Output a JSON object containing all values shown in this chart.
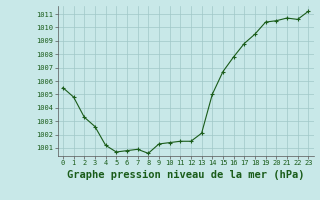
{
  "x": [
    0,
    1,
    2,
    3,
    4,
    5,
    6,
    7,
    8,
    9,
    10,
    11,
    12,
    13,
    14,
    15,
    16,
    17,
    18,
    19,
    20,
    21,
    22,
    23
  ],
  "y": [
    1005.5,
    1004.8,
    1003.3,
    1002.6,
    1001.2,
    1000.7,
    1000.8,
    1000.9,
    1000.6,
    1001.3,
    1001.4,
    1001.5,
    1001.5,
    1002.1,
    1005.0,
    1006.7,
    1007.8,
    1008.8,
    1009.5,
    1010.4,
    1010.5,
    1010.7,
    1010.6,
    1011.2
  ],
  "line_color": "#1a5c1a",
  "marker": "+",
  "marker_size": 3,
  "bg_color": "#c8e8e8",
  "grid_color": "#a0c8c8",
  "title": "Graphe pression niveau de la mer (hPa)",
  "xlim": [
    -0.5,
    23.5
  ],
  "ylim": [
    1000.4,
    1011.6
  ],
  "yticks": [
    1001,
    1002,
    1003,
    1004,
    1005,
    1006,
    1007,
    1008,
    1009,
    1010,
    1011
  ],
  "xticks": [
    0,
    1,
    2,
    3,
    4,
    5,
    6,
    7,
    8,
    9,
    10,
    11,
    12,
    13,
    14,
    15,
    16,
    17,
    18,
    19,
    20,
    21,
    22,
    23
  ],
  "tick_fontsize": 5.0,
  "title_fontsize": 7.5,
  "title_bold": true
}
